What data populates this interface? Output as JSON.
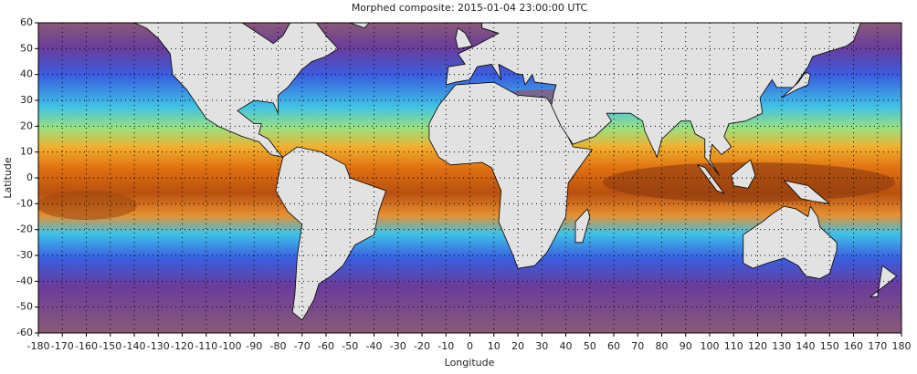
{
  "chart_data": {
    "type": "map",
    "title": "Morphed composite: 2015-01-04 23:00:00 UTC",
    "xlabel": "Longitude",
    "ylabel": "Latitude",
    "xlim": [
      -180,
      180
    ],
    "ylim": [
      -60,
      60
    ],
    "xticks": [
      -180,
      -170,
      -160,
      -150,
      -140,
      -130,
      -120,
      -110,
      -100,
      -90,
      -80,
      -70,
      -60,
      -50,
      -40,
      -30,
      -20,
      -10,
      0,
      10,
      20,
      30,
      40,
      50,
      60,
      70,
      80,
      90,
      100,
      110,
      120,
      130,
      140,
      150,
      160,
      170,
      180
    ],
    "yticks": [
      -60,
      -50,
      -40,
      -30,
      -20,
      -10,
      0,
      10,
      20,
      30,
      40,
      50,
      60
    ],
    "grid": true
  }
}
